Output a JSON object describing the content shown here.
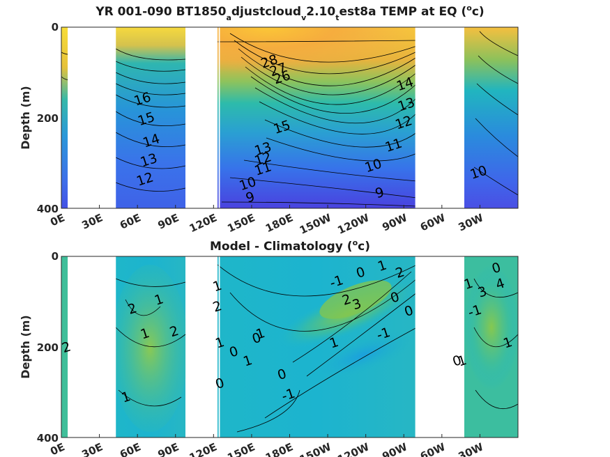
{
  "chart_data": [
    {
      "type": "contour",
      "title": "YR 001-090 BT1850_adjustcloud_v2.10_test8a TEMP at EQ (oc)",
      "title_parts": {
        "a": "YR 001-090 BT1850",
        "b": "a",
        "c": "djustcloud",
        "d": "v",
        "e": "2.10",
        "f": "t",
        "g": "est8a TEMP at EQ (",
        "h": "o",
        "i": "c)"
      },
      "ylabel": "Depth (m)",
      "yticks": [
        "0",
        "200",
        "400"
      ],
      "ylim": [
        0,
        400
      ],
      "xticks": [
        "0E",
        "30E",
        "60E",
        "90E",
        "120E",
        "150E",
        "180E",
        "150W",
        "120W",
        "90W",
        "60W",
        "30W"
      ],
      "land_gaps_lon": [
        [
          5,
          43
        ],
        [
          98,
          118
        ],
        [
          124,
          125
        ],
        [
          279,
          297
        ]
      ],
      "contour_labels": [
        {
          "text": "28",
          "lon": 165,
          "depth": 85
        },
        {
          "text": "27",
          "lon": 172,
          "depth": 103
        },
        {
          "text": "26",
          "lon": 175,
          "depth": 120
        },
        {
          "text": "16",
          "lon": 65,
          "depth": 168
        },
        {
          "text": "15",
          "lon": 68,
          "depth": 212
        },
        {
          "text": "14",
          "lon": 72,
          "depth": 260
        },
        {
          "text": "13",
          "lon": 70,
          "depth": 303
        },
        {
          "text": "12",
          "lon": 67,
          "depth": 345
        },
        {
          "text": "13",
          "lon": 160,
          "depth": 278
        },
        {
          "text": "12",
          "lon": 160,
          "depth": 300
        },
        {
          "text": "11",
          "lon": 160,
          "depth": 322
        },
        {
          "text": "10",
          "lon": 148,
          "depth": 355
        },
        {
          "text": "9",
          "lon": 150,
          "depth": 385
        },
        {
          "text": "15",
          "lon": 175,
          "depth": 230
        },
        {
          "text": "10",
          "lon": 247,
          "depth": 315
        },
        {
          "text": "9",
          "lon": 252,
          "depth": 375
        },
        {
          "text": "14",
          "lon": 272,
          "depth": 135
        },
        {
          "text": "13",
          "lon": 273,
          "depth": 180
        },
        {
          "text": "12",
          "lon": 271,
          "depth": 220
        },
        {
          "text": "11",
          "lon": 263,
          "depth": 270
        },
        {
          "text": "10",
          "lon": 330,
          "depth": 330
        }
      ]
    },
    {
      "type": "contour",
      "title": "Model - Climatology (oc)",
      "title_parts": {
        "a": "Model - Climatology (",
        "h": "o",
        "i": "c)"
      },
      "ylabel": "Depth (m)",
      "yticks": [
        "0",
        "200",
        "400"
      ],
      "ylim": [
        0,
        400
      ],
      "xticks": [
        "0E",
        "30E",
        "60E",
        "90E",
        "120E",
        "150E",
        "180E",
        "150W",
        "120W",
        "90W",
        "60W",
        "30W"
      ],
      "land_gaps_lon": [
        [
          5,
          43
        ],
        [
          98,
          118
        ],
        [
          124,
          125
        ],
        [
          279,
          297
        ]
      ],
      "contour_labels": [
        {
          "text": "2",
          "lon": 5,
          "depth": 210
        },
        {
          "text": "2",
          "lon": 57,
          "depth": 125
        },
        {
          "text": "1",
          "lon": 78,
          "depth": 105
        },
        {
          "text": "1",
          "lon": 67,
          "depth": 180
        },
        {
          "text": "2",
          "lon": 90,
          "depth": 175
        },
        {
          "text": "1",
          "lon": 52,
          "depth": 320
        },
        {
          "text": "1",
          "lon": 124,
          "depth": 75
        },
        {
          "text": "2",
          "lon": 124,
          "depth": 120
        },
        {
          "text": "1",
          "lon": 126,
          "depth": 200
        },
        {
          "text": "0",
          "lon": 126,
          "depth": 290
        },
        {
          "text": "0",
          "lon": 137,
          "depth": 220
        },
        {
          "text": "1",
          "lon": 148,
          "depth": 240
        },
        {
          "text": "0",
          "lon": 155,
          "depth": 190
        },
        {
          "text": "1",
          "lon": 158,
          "depth": 180
        },
        {
          "text": "0",
          "lon": 175,
          "depth": 270
        },
        {
          "text": "-1",
          "lon": 180,
          "depth": 315
        },
        {
          "text": "-1",
          "lon": 218,
          "depth": 65
        },
        {
          "text": "0",
          "lon": 237,
          "depth": 45
        },
        {
          "text": "1",
          "lon": 254,
          "depth": 30
        },
        {
          "text": "2",
          "lon": 268,
          "depth": 45
        },
        {
          "text": "2",
          "lon": 226,
          "depth": 105
        },
        {
          "text": "3",
          "lon": 234,
          "depth": 115
        },
        {
          "text": "0",
          "lon": 264,
          "depth": 100
        },
        {
          "text": "0",
          "lon": 275,
          "depth": 130
        },
        {
          "text": "-1",
          "lon": 255,
          "depth": 180
        },
        {
          "text": "1",
          "lon": 216,
          "depth": 200
        },
        {
          "text": "0",
          "lon": 344,
          "depth": 35
        },
        {
          "text": "4",
          "lon": 347,
          "depth": 70
        },
        {
          "text": "1",
          "lon": 322,
          "depth": 70
        },
        {
          "text": "3",
          "lon": 333,
          "depth": 88
        },
        {
          "text": "-1",
          "lon": 327,
          "depth": 130
        },
        {
          "text": "1",
          "lon": 353,
          "depth": 200
        },
        {
          "text": "0",
          "lon": 313,
          "depth": 240
        },
        {
          "text": "1",
          "lon": 317,
          "depth": 240
        }
      ]
    }
  ]
}
